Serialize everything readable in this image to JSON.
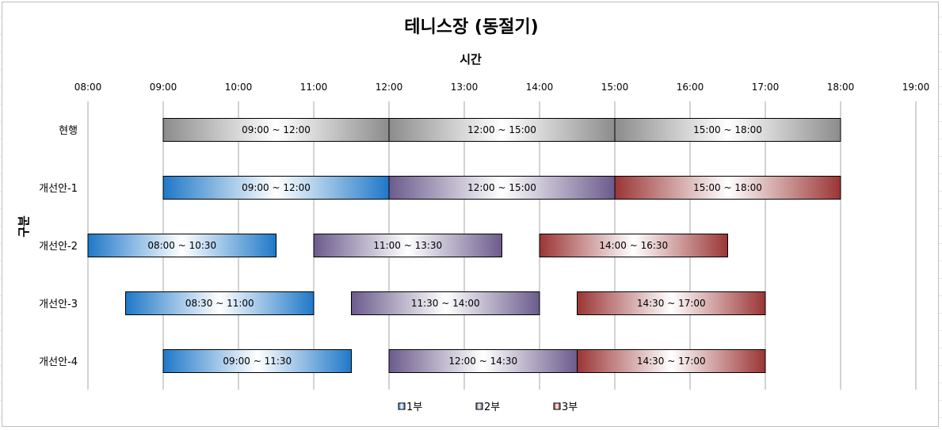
{
  "chart_data": {
    "type": "bar",
    "orientation": "horizontal-gantt",
    "title": "테니스장 (동절기)",
    "xlabel": "시간",
    "ylabel": "구분",
    "x_axis_position": "top",
    "xlim": [
      "08:00",
      "19:00"
    ],
    "x_ticks": [
      "08:00",
      "09:00",
      "10:00",
      "11:00",
      "12:00",
      "13:00",
      "14:00",
      "15:00",
      "16:00",
      "17:00",
      "18:00",
      "19:00"
    ],
    "grid": {
      "vertical": true,
      "horizontal": false
    },
    "categories": [
      "현행",
      "개선안-1",
      "개선안-2",
      "개선안-3",
      "개선안-4"
    ],
    "legend_position": "bottom",
    "series": [
      {
        "name": "1부",
        "color": "#1f78c8",
        "bars": [
          {
            "category": "개선안-1",
            "start": "09:00",
            "end": "12:00",
            "label": "09:00 ~ 12:00"
          },
          {
            "category": "개선안-2",
            "start": "08:00",
            "end": "10:30",
            "label": "08:00 ~ 10:30"
          },
          {
            "category": "개선안-3",
            "start": "08:30",
            "end": "11:00",
            "label": "08:30 ~ 11:00"
          },
          {
            "category": "개선안-4",
            "start": "09:00",
            "end": "11:30",
            "label": "09:00 ~ 11:30"
          }
        ]
      },
      {
        "name": "2부",
        "color": "#6b5b8c",
        "bars": [
          {
            "category": "개선안-1",
            "start": "12:00",
            "end": "15:00",
            "label": "12:00 ~ 15:00"
          },
          {
            "category": "개선안-2",
            "start": "11:00",
            "end": "13:30",
            "label": "11:00 ~ 13:30"
          },
          {
            "category": "개선안-3",
            "start": "11:30",
            "end": "14:00",
            "label": "11:30 ~ 14:00"
          },
          {
            "category": "개선안-4",
            "start": "12:00",
            "end": "14:30",
            "label": "12:00 ~ 14:30"
          }
        ]
      },
      {
        "name": "3부",
        "color": "#9b3535",
        "bars": [
          {
            "category": "개선안-1",
            "start": "15:00",
            "end": "18:00",
            "label": "15:00 ~ 18:00"
          },
          {
            "category": "개선안-2",
            "start": "14:00",
            "end": "16:30",
            "label": "14:00 ~ 16:30"
          },
          {
            "category": "개선안-3",
            "start": "14:30",
            "end": "17:00",
            "label": "14:30 ~ 17:00"
          },
          {
            "category": "개선안-4",
            "start": "14:30",
            "end": "17:00",
            "label": "14:30 ~ 17:00"
          }
        ]
      }
    ],
    "current_bars": {
      "color": "#8c8c8c",
      "bars": [
        {
          "category": "현행",
          "start": "09:00",
          "end": "12:00",
          "label": "09:00 ~ 12:00"
        },
        {
          "category": "현행",
          "start": "12:00",
          "end": "15:00",
          "label": "12:00 ~ 15:00"
        },
        {
          "category": "현행",
          "start": "15:00",
          "end": "18:00",
          "label": "15:00 ~ 18:00"
        }
      ]
    }
  }
}
